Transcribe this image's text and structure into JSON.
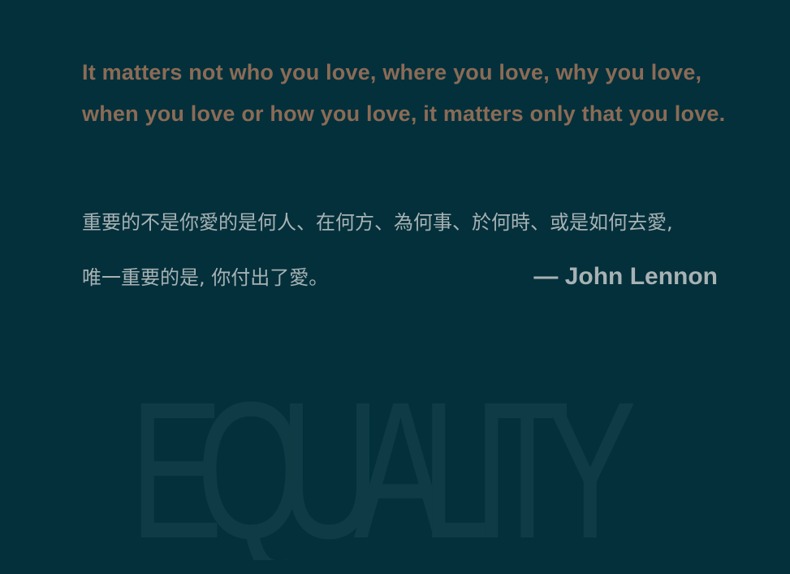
{
  "watermark": {
    "word": "EQUALITY",
    "color": "#0e3b45"
  },
  "quote": {
    "english": "It matters not who you love, where you love, why you love, when you love or how you love, it matters only that you love.",
    "chinese_line1": "重要的不是你愛的是何人、在何方、為何事、於何時、或是如何去愛,",
    "chinese_line2": "唯一重要的是, 你付出了愛。",
    "attribution": "— John Lennon"
  },
  "colors": {
    "background": "#03303b",
    "english_text": "#8b6b56",
    "chinese_text": "#a7b2b4",
    "attribution_text": "#a7b2b4"
  }
}
